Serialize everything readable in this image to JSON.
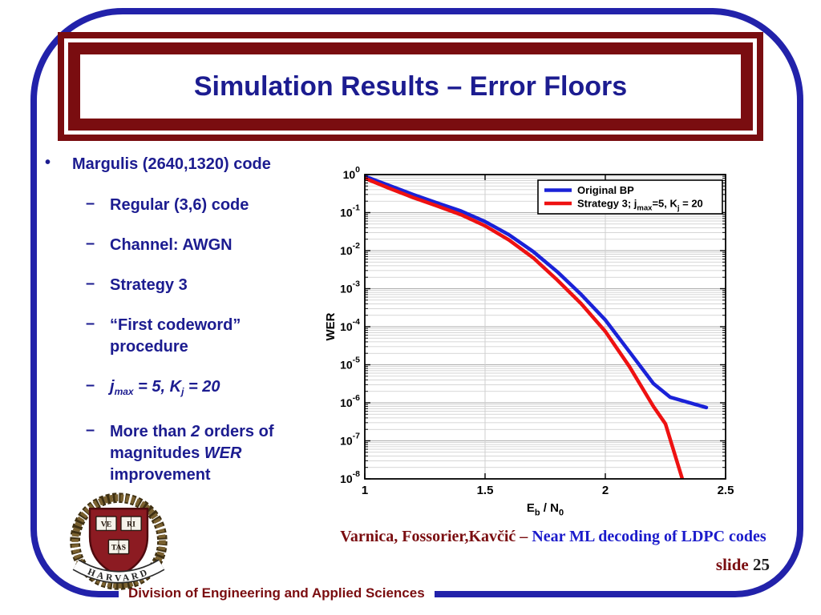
{
  "slide": {
    "title": "Simulation Results – Error Floors",
    "footer": "Division of Engineering and Applied Sciences",
    "slide_label": "slide",
    "slide_number": "25",
    "citation": {
      "authors": "Varnica, Fossorier,Kavčić –",
      "work": "Near ML decoding of LDPC codes"
    }
  },
  "markers": {
    "main_bullet": "•",
    "sub_bullet": "–"
  },
  "bullets": {
    "main": "Margulis (2640,1320) code",
    "sub": [
      {
        "segments": [
          {
            "t": "Regular (3,6) code"
          }
        ]
      },
      {
        "segments": [
          {
            "t": "Channel: AWGN"
          }
        ]
      },
      {
        "segments": [
          {
            "t": "Strategy 3"
          }
        ]
      },
      {
        "segments": [
          {
            "t": "“First codeword” procedure"
          }
        ]
      },
      {
        "segments": [
          {
            "t": "j",
            "i": true
          },
          {
            "t": "max",
            "i": true,
            "sub": true
          },
          {
            "t": " = 5, K",
            "i": true
          },
          {
            "t": "j",
            "i": true,
            "sub": true
          },
          {
            "t": " = 20",
            "i": true
          }
        ]
      },
      {
        "segments": [
          {
            "t": "More than "
          },
          {
            "t": "2",
            "i": true
          },
          {
            "t": " orders of magnitudes "
          },
          {
            "t": "WER",
            "i": true
          },
          {
            "t": " improvement"
          }
        ]
      }
    ]
  },
  "logo": {
    "institution": "HARVARD",
    "motto_books": [
      "VE",
      "RI",
      "TAS"
    ]
  },
  "colors": {
    "navy_text": "#1c1c90",
    "maroon": "#7a0d10",
    "border_blue": "#2222aa",
    "citation_blue": "#1b1bcb",
    "line_blue": "#1a22d8",
    "line_red": "#ee1111"
  },
  "chart_data": {
    "type": "line",
    "title": "",
    "x_axis": {
      "label_segments": [
        {
          "t": "E"
        },
        {
          "t": "b",
          "sub": true
        },
        {
          "t": " / N"
        },
        {
          "t": "0",
          "sub": true
        }
      ],
      "ticks": [
        1,
        1.5,
        2,
        2.5
      ],
      "tick_labels": [
        "1",
        "1.5",
        "2",
        "2.5"
      ],
      "lim": [
        1,
        2.5
      ],
      "gridlines_at": [
        1.5,
        2
      ]
    },
    "y_axis": {
      "label": "WER",
      "scale": "log",
      "base": "10",
      "tick_exponents": [
        0,
        -1,
        -2,
        -3,
        -4,
        -5,
        -6,
        -7,
        -8
      ],
      "lim": [
        1e-08,
        1
      ]
    },
    "legend": {
      "position": "top-right",
      "border": true
    },
    "series": [
      {
        "name": "Original BP",
        "name_segments": [
          {
            "t": "Original BP"
          }
        ],
        "color": "#1a22d8",
        "points": [
          [
            1.0,
            0.9
          ],
          [
            1.1,
            0.52
          ],
          [
            1.2,
            0.3
          ],
          [
            1.3,
            0.18
          ],
          [
            1.4,
            0.11
          ],
          [
            1.5,
            0.058
          ],
          [
            1.6,
            0.026
          ],
          [
            1.7,
            0.0095
          ],
          [
            1.8,
            0.0028
          ],
          [
            1.9,
            0.0007
          ],
          [
            2.0,
            0.00015
          ],
          [
            2.1,
            2.2e-05
          ],
          [
            2.2,
            3.2e-06
          ],
          [
            2.27,
            1.4e-06
          ],
          [
            2.42,
            7.5e-07
          ]
        ]
      },
      {
        "name": "Strategy 3; j_max=5, K_j = 20",
        "name_segments": [
          {
            "t": "Strategy 3; j"
          },
          {
            "t": "max",
            "sub": true
          },
          {
            "t": "=5, K"
          },
          {
            "t": "j",
            "sub": true
          },
          {
            "t": " = 20"
          }
        ],
        "color": "#ee1111",
        "points": [
          [
            1.0,
            0.8
          ],
          [
            1.1,
            0.44
          ],
          [
            1.2,
            0.25
          ],
          [
            1.3,
            0.15
          ],
          [
            1.4,
            0.088
          ],
          [
            1.5,
            0.045
          ],
          [
            1.6,
            0.019
          ],
          [
            1.7,
            0.0065
          ],
          [
            1.8,
            0.0017
          ],
          [
            1.9,
            0.0004
          ],
          [
            2.0,
            7.5e-05
          ],
          [
            2.1,
            9e-06
          ],
          [
            2.2,
            8e-07
          ],
          [
            2.25,
            2.8e-07
          ],
          [
            2.32,
            1e-08
          ]
        ]
      }
    ]
  }
}
